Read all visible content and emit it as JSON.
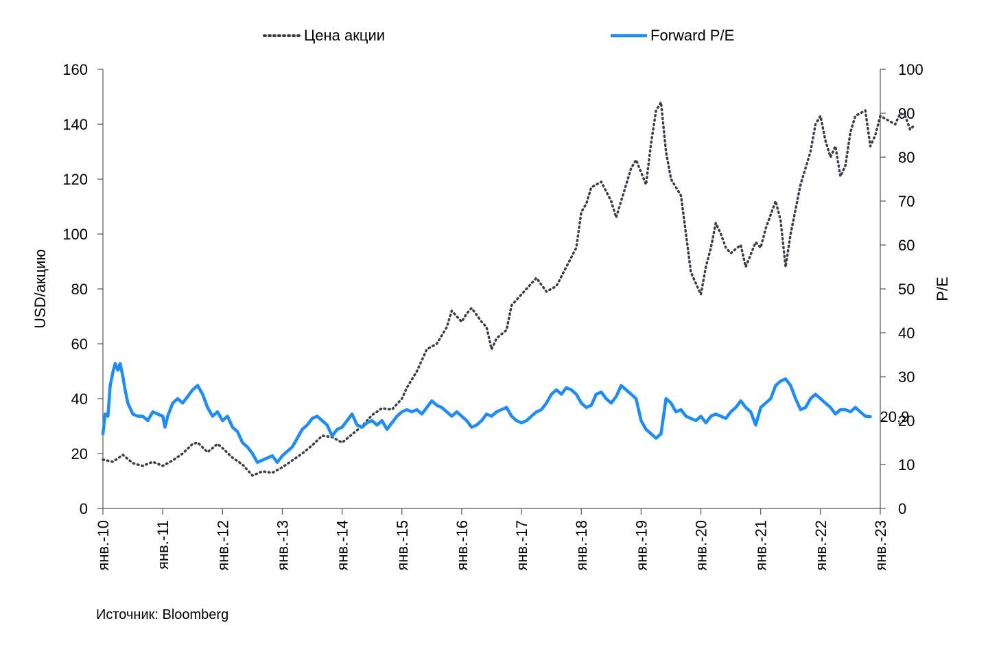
{
  "chart_data": {
    "type": "line",
    "source": "Источник: Bloomberg",
    "y_left": {
      "label": "USD/акцию",
      "min": 0,
      "max": 160,
      "ticks": [
        0,
        20,
        40,
        60,
        80,
        100,
        120,
        140,
        160
      ]
    },
    "y_right": {
      "label": "P/E",
      "min": 0,
      "max": 100,
      "ticks": [
        0,
        10,
        20,
        30,
        40,
        50,
        60,
        70,
        80,
        90,
        100
      ]
    },
    "x": {
      "range": [
        "2010-01",
        "2023-01"
      ],
      "tick_labels": [
        "янв.-10",
        "янв.-11",
        "янв.-12",
        "янв.-13",
        "янв.-14",
        "янв.-15",
        "янв.-16",
        "янв.-17",
        "янв.-18",
        "янв.-19",
        "янв.-20",
        "янв.-21",
        "янв.-22",
        "янв.-23"
      ]
    },
    "legend_position": "top",
    "series": [
      {
        "name": "Цена акции",
        "axis": "left",
        "color": "#3a3f4b",
        "style": "dotted",
        "points": [
          [
            "2010-01",
            17.8
          ],
          [
            "2010-03",
            17
          ],
          [
            "2010-05",
            19.5
          ],
          [
            "2010-07",
            16.5
          ],
          [
            "2010-09",
            15.5
          ],
          [
            "2010-11",
            17
          ],
          [
            "2011-01",
            15.5
          ],
          [
            "2011-03",
            17.5
          ],
          [
            "2011-05",
            20
          ],
          [
            "2011-07",
            23.5
          ],
          [
            "2011-08",
            24
          ],
          [
            "2011-10",
            20.5
          ],
          [
            "2011-12",
            23.5
          ],
          [
            "2012-01",
            22
          ],
          [
            "2012-03",
            18.5
          ],
          [
            "2012-05",
            16
          ],
          [
            "2012-07",
            12
          ],
          [
            "2012-09",
            13.5
          ],
          [
            "2012-11",
            13
          ],
          [
            "2013-01",
            15
          ],
          [
            "2013-03",
            17.5
          ],
          [
            "2013-05",
            20
          ],
          [
            "2013-07",
            23
          ],
          [
            "2013-09",
            26.5
          ],
          [
            "2013-11",
            26
          ],
          [
            "2014-01",
            24
          ],
          [
            "2014-03",
            27
          ],
          [
            "2014-05",
            30
          ],
          [
            "2014-07",
            34
          ],
          [
            "2014-09",
            36.5
          ],
          [
            "2014-11",
            36
          ],
          [
            "2015-01",
            40
          ],
          [
            "2015-02",
            44
          ],
          [
            "2015-04",
            50
          ],
          [
            "2015-06",
            58
          ],
          [
            "2015-08",
            60
          ],
          [
            "2015-10",
            66
          ],
          [
            "2015-11",
            72
          ],
          [
            "2016-01",
            68
          ],
          [
            "2016-02",
            71
          ],
          [
            "2016-03",
            73
          ],
          [
            "2016-05",
            68
          ],
          [
            "2016-06",
            66
          ],
          [
            "2016-07",
            58
          ],
          [
            "2016-08",
            62
          ],
          [
            "2016-10",
            65
          ],
          [
            "2016-11",
            74
          ],
          [
            "2017-01",
            78
          ],
          [
            "2017-03",
            82
          ],
          [
            "2017-04",
            84
          ],
          [
            "2017-06",
            79
          ],
          [
            "2017-08",
            81
          ],
          [
            "2017-10",
            88
          ],
          [
            "2017-12",
            95
          ],
          [
            "2018-01",
            108
          ],
          [
            "2018-02",
            111
          ],
          [
            "2018-03",
            117
          ],
          [
            "2018-05",
            119
          ],
          [
            "2018-07",
            112
          ],
          [
            "2018-08",
            106
          ],
          [
            "2018-09",
            112
          ],
          [
            "2018-11",
            124
          ],
          [
            "2018-12",
            127
          ],
          [
            "2019-02",
            118
          ],
          [
            "2019-03",
            133
          ],
          [
            "2019-04",
            145
          ],
          [
            "2019-05",
            148
          ],
          [
            "2019-06",
            130
          ],
          [
            "2019-07",
            120
          ],
          [
            "2019-09",
            114
          ],
          [
            "2019-10",
            100
          ],
          [
            "2019-11",
            86
          ],
          [
            "2020-01",
            78
          ],
          [
            "2020-02",
            88
          ],
          [
            "2020-03",
            95
          ],
          [
            "2020-04",
            104
          ],
          [
            "2020-05",
            100
          ],
          [
            "2020-06",
            95
          ],
          [
            "2020-07",
            93
          ],
          [
            "2020-09",
            96
          ],
          [
            "2020-10",
            88
          ],
          [
            "2020-12",
            97
          ],
          [
            "2021-01",
            95
          ],
          [
            "2021-02",
            102
          ],
          [
            "2021-04",
            112
          ],
          [
            "2021-05",
            105
          ],
          [
            "2021-06",
            88
          ],
          [
            "2021-07",
            100
          ],
          [
            "2021-09",
            118
          ],
          [
            "2021-11",
            130
          ],
          [
            "2021-12",
            140
          ],
          [
            "2022-01",
            143
          ],
          [
            "2022-02",
            134
          ],
          [
            "2022-03",
            128
          ],
          [
            "2022-04",
            132
          ],
          [
            "2022-05",
            121
          ],
          [
            "2022-06",
            125
          ],
          [
            "2022-07",
            137
          ],
          [
            "2022-08",
            143
          ],
          [
            "2022-10",
            145
          ],
          [
            "2022-11",
            132
          ],
          [
            "2022-12",
            136
          ],
          [
            "2023-01",
            143
          ],
          [
            "2023-03",
            141
          ],
          [
            "2023-04",
            140
          ],
          [
            "2023-05",
            144
          ],
          [
            "2023-06",
            143
          ],
          [
            "2023-07",
            138
          ],
          [
            "2023-08",
            140
          ]
        ]
      },
      {
        "name": "Forward P/E",
        "axis": "right",
        "color": "#1a8cff",
        "style": "solid",
        "end_label": "20,9",
        "points": [
          [
            "2010-01",
            17
          ],
          [
            "2010-01-15",
            21.5
          ],
          [
            "2010-02",
            21
          ],
          [
            "2010-02-15",
            28
          ],
          [
            "2010-03",
            31
          ],
          [
            "2010-03-15",
            33
          ],
          [
            "2010-04",
            31.5
          ],
          [
            "2010-04-15",
            33
          ],
          [
            "2010-05",
            30
          ],
          [
            "2010-05-15",
            27
          ],
          [
            "2010-06",
            24
          ],
          [
            "2010-07",
            21.5
          ],
          [
            "2010-08",
            21
          ],
          [
            "2010-09",
            21
          ],
          [
            "2010-10",
            20
          ],
          [
            "2010-11",
            22
          ],
          [
            "2010-12",
            21.5
          ],
          [
            "2011-01",
            21
          ],
          [
            "2011-01-15",
            18.5
          ],
          [
            "2011-02",
            21
          ],
          [
            "2011-03",
            24
          ],
          [
            "2011-04",
            25
          ],
          [
            "2011-05",
            24
          ],
          [
            "2011-06",
            25.5
          ],
          [
            "2011-07",
            27
          ],
          [
            "2011-08",
            28
          ],
          [
            "2011-09",
            26
          ],
          [
            "2011-10",
            23
          ],
          [
            "2011-11",
            21
          ],
          [
            "2011-12",
            22
          ],
          [
            "2012-01",
            20
          ],
          [
            "2012-02",
            21
          ],
          [
            "2012-03",
            18.5
          ],
          [
            "2012-04",
            17.5
          ],
          [
            "2012-05",
            15
          ],
          [
            "2012-06",
            14
          ],
          [
            "2012-07",
            12.5
          ],
          [
            "2012-08",
            10.5
          ],
          [
            "2012-09",
            11
          ],
          [
            "2012-10",
            11.5
          ],
          [
            "2012-11",
            12
          ],
          [
            "2012-12",
            10.5
          ],
          [
            "2013-01",
            12
          ],
          [
            "2013-02",
            13
          ],
          [
            "2013-03",
            14
          ],
          [
            "2013-04",
            16
          ],
          [
            "2013-05",
            18
          ],
          [
            "2013-06",
            19
          ],
          [
            "2013-07",
            20.5
          ],
          [
            "2013-08",
            21
          ],
          [
            "2013-09",
            20
          ],
          [
            "2013-10",
            19
          ],
          [
            "2013-11",
            16.5
          ],
          [
            "2013-12",
            18
          ],
          [
            "2014-01",
            18.5
          ],
          [
            "2014-02",
            20
          ],
          [
            "2014-03",
            21.5
          ],
          [
            "2014-04",
            19
          ],
          [
            "2014-05",
            18.5
          ],
          [
            "2014-06",
            19.5
          ],
          [
            "2014-07",
            20
          ],
          [
            "2014-08",
            19
          ],
          [
            "2014-09",
            20
          ],
          [
            "2014-10",
            18
          ],
          [
            "2014-11",
            19.5
          ],
          [
            "2014-12",
            21
          ],
          [
            "2015-01",
            22
          ],
          [
            "2015-02",
            22.5
          ],
          [
            "2015-03",
            22
          ],
          [
            "2015-04",
            22.5
          ],
          [
            "2015-05",
            21.5
          ],
          [
            "2015-06",
            23
          ],
          [
            "2015-07",
            24.5
          ],
          [
            "2015-08",
            23.5
          ],
          [
            "2015-09",
            23
          ],
          [
            "2015-10",
            22
          ],
          [
            "2015-11",
            21
          ],
          [
            "2015-12",
            22
          ],
          [
            "2016-01",
            21
          ],
          [
            "2016-02",
            20
          ],
          [
            "2016-03",
            18.5
          ],
          [
            "2016-04",
            19
          ],
          [
            "2016-05",
            20
          ],
          [
            "2016-06",
            21.5
          ],
          [
            "2016-07",
            21
          ],
          [
            "2016-08",
            22
          ],
          [
            "2016-09",
            22.5
          ],
          [
            "2016-10",
            23
          ],
          [
            "2016-11",
            21
          ],
          [
            "2016-12",
            20
          ],
          [
            "2017-01",
            19.5
          ],
          [
            "2017-02",
            20
          ],
          [
            "2017-03",
            21
          ],
          [
            "2017-04",
            22
          ],
          [
            "2017-05",
            22.5
          ],
          [
            "2017-06",
            24
          ],
          [
            "2017-07",
            26
          ],
          [
            "2017-08",
            27
          ],
          [
            "2017-09",
            26
          ],
          [
            "2017-10",
            27.5
          ],
          [
            "2017-11",
            27
          ],
          [
            "2017-12",
            26
          ],
          [
            "2018-01",
            24
          ],
          [
            "2018-02",
            23
          ],
          [
            "2018-03",
            23.5
          ],
          [
            "2018-04",
            26
          ],
          [
            "2018-05",
            26.5
          ],
          [
            "2018-06",
            25
          ],
          [
            "2018-07",
            24
          ],
          [
            "2018-08",
            25.5
          ],
          [
            "2018-09",
            28
          ],
          [
            "2018-10",
            27
          ],
          [
            "2018-11",
            26
          ],
          [
            "2018-12",
            25
          ],
          [
            "2019-01",
            20
          ],
          [
            "2019-02",
            18
          ],
          [
            "2019-03",
            17
          ],
          [
            "2019-04",
            16
          ],
          [
            "2019-05",
            17
          ],
          [
            "2019-06",
            25
          ],
          [
            "2019-07",
            24
          ],
          [
            "2019-08",
            22
          ],
          [
            "2019-09",
            22.5
          ],
          [
            "2019-10",
            21
          ],
          [
            "2019-11",
            20.5
          ],
          [
            "2019-12",
            20
          ],
          [
            "2020-01",
            21
          ],
          [
            "2020-02",
            19.5
          ],
          [
            "2020-03",
            21
          ],
          [
            "2020-04",
            21.5
          ],
          [
            "2020-05",
            21
          ],
          [
            "2020-06",
            20.5
          ],
          [
            "2020-07",
            22
          ],
          [
            "2020-08",
            23
          ],
          [
            "2020-09",
            24.5
          ],
          [
            "2020-10",
            23
          ],
          [
            "2020-11",
            22
          ],
          [
            "2020-12",
            19
          ],
          [
            "2021-01",
            23
          ],
          [
            "2021-02",
            24
          ],
          [
            "2021-03",
            25
          ],
          [
            "2021-04",
            28
          ],
          [
            "2021-05",
            29
          ],
          [
            "2021-06",
            29.5
          ],
          [
            "2021-07",
            28
          ],
          [
            "2021-08",
            25
          ],
          [
            "2021-09",
            22.5
          ],
          [
            "2021-10",
            23
          ],
          [
            "2021-11",
            25
          ],
          [
            "2021-12",
            26
          ],
          [
            "2022-01",
            25
          ],
          [
            "2022-02",
            24
          ],
          [
            "2022-03",
            23
          ],
          [
            "2022-04",
            21.5
          ],
          [
            "2022-05",
            22.5
          ],
          [
            "2022-06",
            22.5
          ],
          [
            "2022-07",
            22
          ],
          [
            "2022-08",
            23
          ],
          [
            "2022-09",
            22
          ],
          [
            "2022-10",
            21
          ],
          [
            "2022-11",
            20.9
          ]
        ]
      }
    ]
  }
}
